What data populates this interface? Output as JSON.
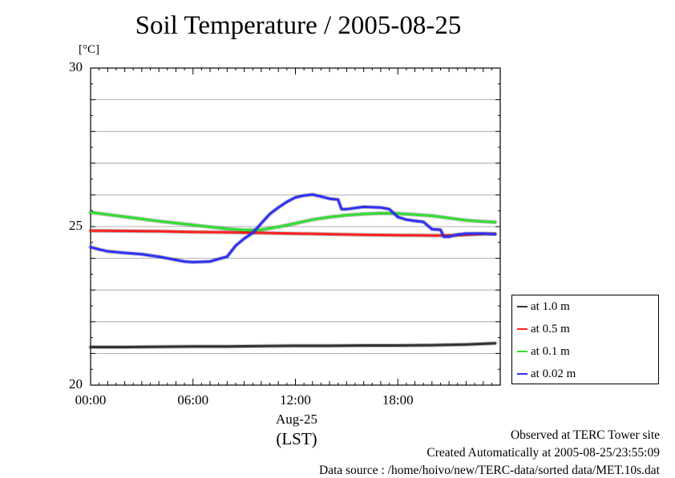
{
  "chart_data": {
    "type": "line",
    "title": "Soil Temperature / 2005-08-25",
    "ylabel": "[°C]",
    "xlabel_date": "Aug-25",
    "xlabel_tz": "(LST)",
    "ylim": [
      20,
      30
    ],
    "xlim": [
      0,
      24
    ],
    "y_ticks": [
      "20",
      "25",
      "30"
    ],
    "x_ticks": [
      {
        "value": 0,
        "label": "00:00"
      },
      {
        "value": 6,
        "label": "06:00"
      },
      {
        "value": 12,
        "label": "12:00"
      },
      {
        "value": 18,
        "label": "18:00"
      }
    ],
    "grid": true,
    "legend_position": "right",
    "series": [
      {
        "name": "at 1.0 m",
        "color": "#333333",
        "x": [
          0,
          2,
          4,
          6,
          8,
          10,
          12,
          14,
          16,
          18,
          20,
          22,
          23.7
        ],
        "y": [
          21.2,
          21.2,
          21.21,
          21.22,
          21.22,
          21.23,
          21.24,
          21.24,
          21.25,
          21.25,
          21.26,
          21.28,
          21.32
        ]
      },
      {
        "name": "at 0.5 m",
        "color": "#ff2020",
        "x": [
          0,
          2,
          4,
          6,
          8,
          10,
          12,
          14,
          16,
          18,
          20,
          21,
          22,
          23,
          23.7
        ],
        "y": [
          24.87,
          24.86,
          24.85,
          24.83,
          24.82,
          24.8,
          24.78,
          24.76,
          24.74,
          24.73,
          24.72,
          24.72,
          24.74,
          24.77,
          24.77
        ]
      },
      {
        "name": "at 0.1 m",
        "color": "#30e030",
        "x": [
          0,
          1,
          2,
          3,
          4,
          5,
          6,
          7,
          8,
          9,
          10,
          11,
          12,
          13,
          14,
          15,
          16,
          17,
          18,
          19,
          20,
          21,
          22,
          23,
          23.7
        ],
        "y": [
          25.45,
          25.38,
          25.31,
          25.24,
          25.17,
          25.11,
          25.05,
          24.99,
          24.93,
          24.89,
          24.9,
          24.99,
          25.1,
          25.22,
          25.3,
          25.36,
          25.4,
          25.42,
          25.41,
          25.38,
          25.34,
          25.27,
          25.2,
          25.16,
          25.14
        ]
      },
      {
        "name": "at 0.02 m",
        "color": "#3030ff",
        "x": [
          0,
          0.5,
          1,
          2,
          3,
          4,
          5,
          5.5,
          6,
          7,
          7.5,
          8,
          8.5,
          9,
          9.5,
          10,
          10.5,
          11,
          11.5,
          12,
          12.5,
          13,
          13.5,
          14,
          14.5,
          14.7,
          15,
          16,
          17,
          17.5,
          18,
          18.5,
          19,
          19.5,
          20,
          20.5,
          20.7,
          21,
          21.5,
          22,
          23,
          23.7
        ],
        "y": [
          24.35,
          24.28,
          24.22,
          24.17,
          24.13,
          24.05,
          23.95,
          23.9,
          23.88,
          23.9,
          23.98,
          24.05,
          24.4,
          24.62,
          24.8,
          25.1,
          25.4,
          25.6,
          25.78,
          25.92,
          25.98,
          26.01,
          25.95,
          25.88,
          25.85,
          25.55,
          25.55,
          25.62,
          25.6,
          25.55,
          25.3,
          25.22,
          25.18,
          25.15,
          24.92,
          24.9,
          24.68,
          24.68,
          24.75,
          24.78,
          24.78,
          24.76
        ]
      }
    ]
  },
  "footer": {
    "observed": "Observed at TERC Tower site",
    "created": "Created Automatically at 2005-08-25/23:55:09",
    "source": "Data source : /home/hoivo/new/TERC-data/sorted  data/MET.10s.dat"
  }
}
